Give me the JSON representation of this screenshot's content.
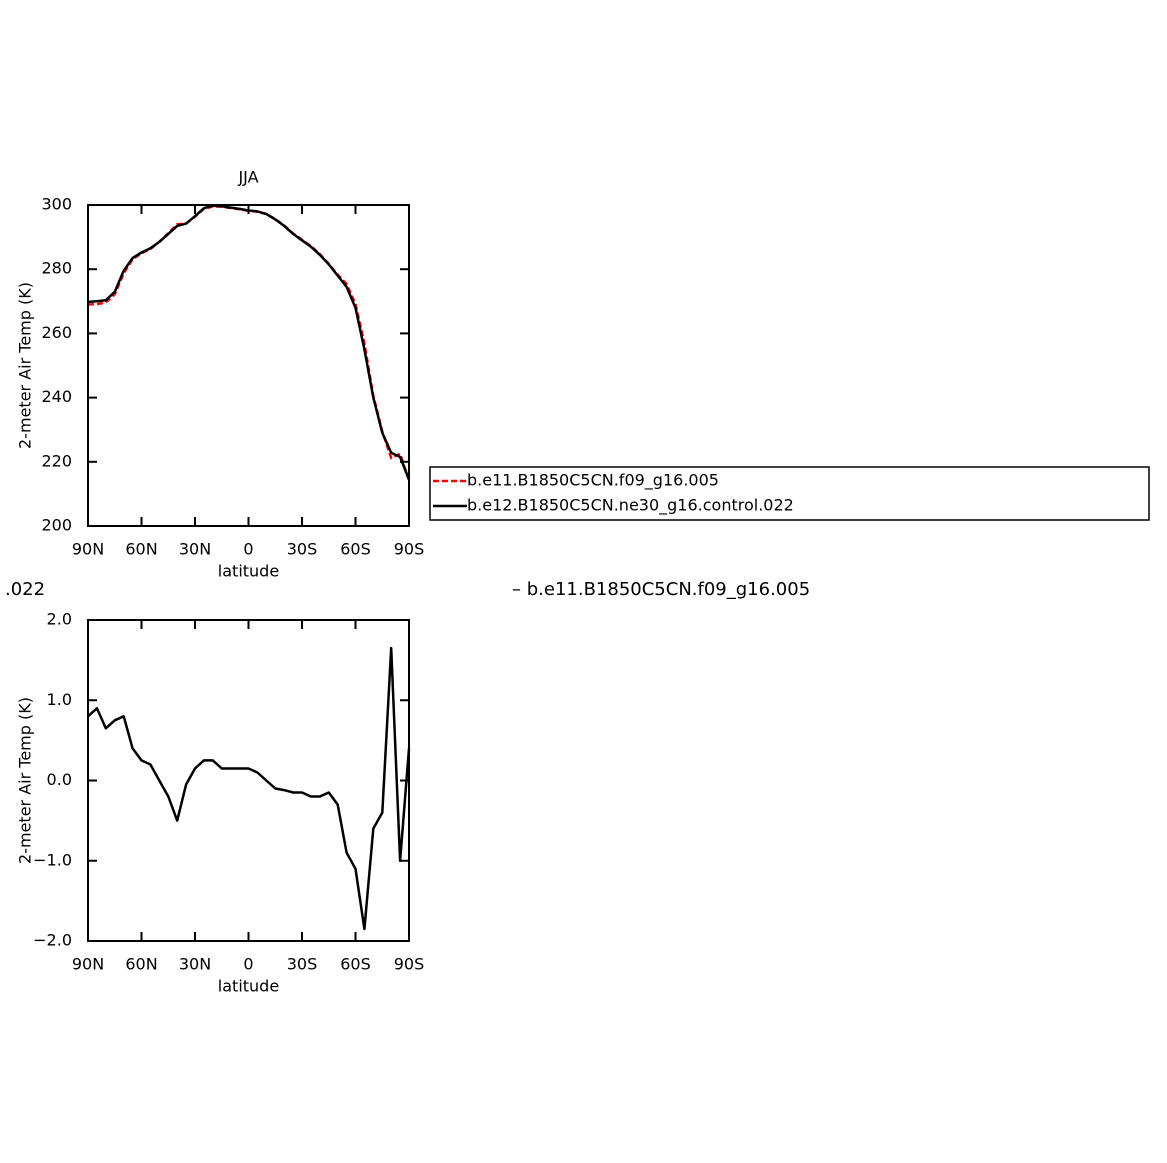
{
  "chart_data": [
    {
      "type": "line",
      "title": "JJA",
      "xlabel": "latitude",
      "ylabel": "2-meter Air Temp (K)",
      "x": [
        90,
        85,
        80,
        75,
        70,
        65,
        60,
        55,
        50,
        45,
        40,
        35,
        30,
        25,
        20,
        15,
        10,
        5,
        0,
        -5,
        -10,
        -15,
        -20,
        -25,
        -30,
        -35,
        -40,
        -45,
        -50,
        -55,
        -60,
        -65,
        -70,
        -75,
        -80,
        -85,
        -90
      ],
      "xlim": [
        90,
        -90
      ],
      "xticks": [
        {
          "value": 90,
          "label": "90N"
        },
        {
          "value": 60,
          "label": "60N"
        },
        {
          "value": 30,
          "label": "30N"
        },
        0,
        {
          "value": -30,
          "label": "30S"
        },
        {
          "value": -60,
          "label": "60S"
        },
        {
          "value": -90,
          "label": "90S"
        }
      ],
      "ylim": [
        200,
        300
      ],
      "yticks": [
        200,
        220,
        240,
        260,
        280,
        300
      ],
      "series": [
        {
          "name": "b.e11.B1850C5CN.f09_g16.005",
          "color": "#ff0000",
          "dashed": true,
          "values": [
            269.0,
            269.1,
            269.65,
            272.25,
            278.7,
            283.1,
            284.95,
            286.3,
            288.5,
            291.2,
            294.0,
            294.25,
            296.35,
            298.75,
            299.55,
            299.45,
            299.05,
            298.65,
            298.15,
            297.9,
            297.2,
            295.6,
            293.62,
            291.15,
            289.15,
            287.2,
            284.7,
            281.65,
            278.3,
            275.4,
            269.1,
            256.85,
            240.6,
            229.4,
            221.15,
            222.5,
            214.1
          ]
        },
        {
          "name": "b.e12.B1850C5CN.ne30_g16.control.022",
          "color": "#000000",
          "values": [
            269.8,
            270,
            270.3,
            273,
            279.5,
            283.5,
            285.2,
            286.5,
            288.5,
            291,
            293.5,
            294.2,
            296.5,
            299,
            299.8,
            299.6,
            299.2,
            298.8,
            298.3,
            298,
            297.2,
            295.5,
            293.5,
            291,
            289,
            287,
            284.5,
            281.5,
            278,
            274.5,
            268,
            255,
            240,
            229,
            222.8,
            221.5,
            214.5
          ]
        }
      ]
    },
    {
      "type": "line",
      "title_fragments": [
        ".022",
        "– b.e11.B1850C5CN.f09_g16.005"
      ],
      "xlabel": "latitude",
      "ylabel": "2-meter Air Temp (K)",
      "x": [
        90,
        85,
        80,
        75,
        70,
        65,
        60,
        55,
        50,
        45,
        40,
        35,
        30,
        25,
        20,
        15,
        10,
        5,
        0,
        -5,
        -10,
        -15,
        -20,
        -25,
        -30,
        -35,
        -40,
        -45,
        -50,
        -55,
        -60,
        -65,
        -70,
        -75,
        -80,
        -85,
        -90
      ],
      "xlim": [
        90,
        -90
      ],
      "xticks": [
        {
          "value": 90,
          "label": "90N"
        },
        {
          "value": 60,
          "label": "60N"
        },
        {
          "value": 30,
          "label": "30N"
        },
        0,
        {
          "value": -30,
          "label": "30S"
        },
        {
          "value": -60,
          "label": "60S"
        },
        {
          "value": -90,
          "label": "90S"
        }
      ],
      "ylim": [
        -2,
        2
      ],
      "yticks": [
        {
          "value": -2,
          "label": "−2.0"
        },
        {
          "value": -1,
          "label": "−1.0"
        },
        {
          "value": 0,
          "label": "0.0"
        },
        {
          "value": 1,
          "label": "1.0"
        },
        {
          "value": 2,
          "label": "2.0"
        }
      ],
      "series": [
        {
          "color": "#000000",
          "values": [
            0.8,
            0.9,
            0.65,
            0.75,
            0.8,
            0.4,
            0.25,
            0.2,
            0,
            -0.2,
            -0.5,
            -0.05,
            0.15,
            0.25,
            0.25,
            0.15,
            0.15,
            0.15,
            0.15,
            0.1,
            0,
            -0.1,
            -0.12,
            -0.15,
            -0.15,
            -0.2,
            -0.2,
            -0.15,
            -0.3,
            -0.9,
            -1.1,
            -1.85,
            -0.6,
            -0.4,
            1.65,
            -1.0,
            0.4
          ]
        }
      ]
    }
  ]
}
